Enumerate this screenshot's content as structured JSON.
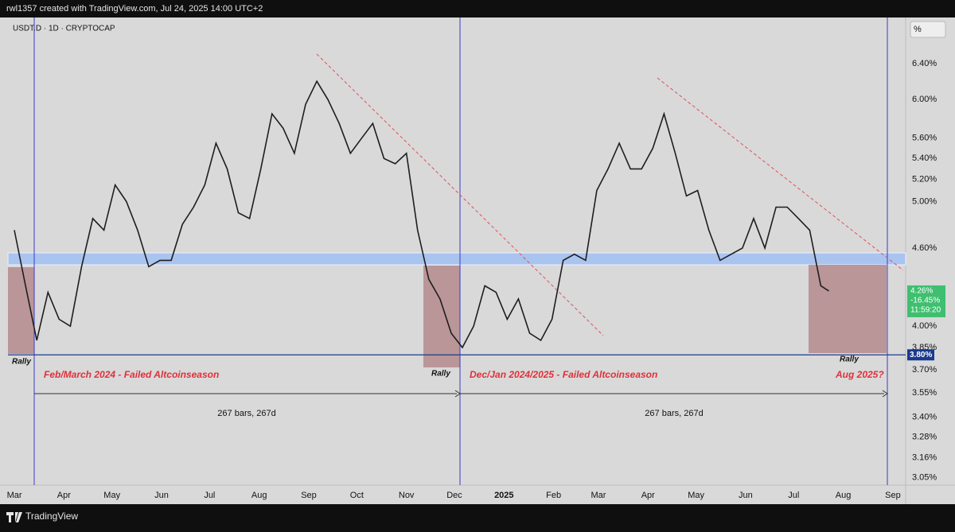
{
  "header": {
    "credit": "rwl1357 created with TradingView.com, Jul 24, 2025 14:00 UTC+2",
    "symbol": "USDT.D · 1D · CRYPTOCAP",
    "scale_button": "%"
  },
  "footer": {
    "brand": "TradingView"
  },
  "chart_data": {
    "type": "line",
    "log_scale": true,
    "grid": false,
    "color": "#1e1e1e",
    "x": [
      "2024-03-01",
      "2024-03-08",
      "2024-03-15",
      "2024-03-22",
      "2024-03-29",
      "2024-04-05",
      "2024-04-12",
      "2024-04-19",
      "2024-04-26",
      "2024-05-03",
      "2024-05-10",
      "2024-05-17",
      "2024-05-24",
      "2024-05-31",
      "2024-06-07",
      "2024-06-14",
      "2024-06-21",
      "2024-06-28",
      "2024-07-05",
      "2024-07-12",
      "2024-07-19",
      "2024-07-26",
      "2024-08-02",
      "2024-08-09",
      "2024-08-16",
      "2024-08-23",
      "2024-08-30",
      "2024-09-06",
      "2024-09-13",
      "2024-09-20",
      "2024-09-27",
      "2024-10-04",
      "2024-10-11",
      "2024-10-18",
      "2024-10-25",
      "2024-11-01",
      "2024-11-08",
      "2024-11-15",
      "2024-11-22",
      "2024-11-29",
      "2024-12-06",
      "2024-12-13",
      "2024-12-20",
      "2024-12-27",
      "2025-01-03",
      "2025-01-10",
      "2025-01-17",
      "2025-01-24",
      "2025-01-31",
      "2025-02-07",
      "2025-02-14",
      "2025-02-21",
      "2025-02-28",
      "2025-03-07",
      "2025-03-14",
      "2025-03-21",
      "2025-03-28",
      "2025-04-04",
      "2025-04-11",
      "2025-04-18",
      "2025-04-25",
      "2025-05-02",
      "2025-05-09",
      "2025-05-16",
      "2025-05-23",
      "2025-05-30",
      "2025-06-06",
      "2025-06-13",
      "2025-06-20",
      "2025-06-27",
      "2025-07-04",
      "2025-07-11",
      "2025-07-18",
      "2025-07-23"
    ],
    "values": [
      4.75,
      4.3,
      3.9,
      4.25,
      4.05,
      4.0,
      4.45,
      4.85,
      4.75,
      5.15,
      5.0,
      4.75,
      4.45,
      4.5,
      4.5,
      4.8,
      4.95,
      5.15,
      5.55,
      5.3,
      4.9,
      4.85,
      5.3,
      5.85,
      5.7,
      5.45,
      5.95,
      6.2,
      6.0,
      5.75,
      5.45,
      5.6,
      5.75,
      5.4,
      5.35,
      5.45,
      4.75,
      4.35,
      4.2,
      3.95,
      3.85,
      4.0,
      4.3,
      4.25,
      4.05,
      4.2,
      3.95,
      3.9,
      4.05,
      4.5,
      4.55,
      4.5,
      5.1,
      5.3,
      5.55,
      5.3,
      5.3,
      5.5,
      5.85,
      5.45,
      5.05,
      5.1,
      4.75,
      4.5,
      4.55,
      4.6,
      4.85,
      4.6,
      4.95,
      4.95,
      4.85,
      4.75,
      4.3,
      4.26
    ],
    "xlim": [
      "2024-02-26",
      "2025-09-09"
    ],
    "xticks": [
      {
        "value": "2024-03-01",
        "label": "Mar"
      },
      {
        "value": "2024-04-01",
        "label": "Apr"
      },
      {
        "value": "2024-05-01",
        "label": "May"
      },
      {
        "value": "2024-06-01",
        "label": "Jun"
      },
      {
        "value": "2024-07-01",
        "label": "Jul"
      },
      {
        "value": "2024-08-01",
        "label": "Aug"
      },
      {
        "value": "2024-09-01",
        "label": "Sep"
      },
      {
        "value": "2024-10-01",
        "label": "Oct"
      },
      {
        "value": "2024-11-01",
        "label": "Nov"
      },
      {
        "value": "2024-12-01",
        "label": "Dec"
      },
      {
        "value": "2025-01-01",
        "label": "2025"
      },
      {
        "value": "2025-02-01",
        "label": "Feb"
      },
      {
        "value": "2025-03-01",
        "label": "Mar"
      },
      {
        "value": "2025-04-01",
        "label": "Apr"
      },
      {
        "value": "2025-05-01",
        "label": "May"
      },
      {
        "value": "2025-06-01",
        "label": "Jun"
      },
      {
        "value": "2025-07-01",
        "label": "Jul"
      },
      {
        "value": "2025-08-01",
        "label": "Aug"
      },
      {
        "value": "2025-09-01",
        "label": "Sep"
      }
    ],
    "ylim": [
      3.01,
      6.95
    ],
    "yticks": [
      {
        "value": 3.05,
        "label": "3.05%"
      },
      {
        "value": 3.16,
        "label": "3.16%"
      },
      {
        "value": 3.28,
        "label": "3.28%"
      },
      {
        "value": 3.4,
        "label": "3.40%"
      },
      {
        "value": 3.55,
        "label": "3.55%"
      },
      {
        "value": 3.7,
        "label": "3.70%"
      },
      {
        "value": 3.85,
        "label": "3.85%"
      },
      {
        "value": 4.0,
        "label": "4.00%"
      },
      {
        "value": 4.6,
        "label": "4.60%"
      },
      {
        "value": 5.0,
        "label": "5.00%"
      },
      {
        "value": 5.2,
        "label": "5.20%"
      },
      {
        "value": 5.4,
        "label": "5.40%"
      },
      {
        "value": 5.6,
        "label": "5.60%"
      },
      {
        "value": 6.0,
        "label": "6.00%"
      },
      {
        "value": 6.4,
        "label": "6.40%"
      }
    ],
    "level": {
      "value": 3.8,
      "label": "3.80%",
      "color": "#1a3a8f"
    },
    "last_price": {
      "value": 4.26,
      "label": "4.26%",
      "change": "-16.45%",
      "countdown": "11:59:20",
      "color": "#3fbf6f"
    },
    "annotations": {
      "rally": [
        "Rally",
        "Rally",
        "Rally"
      ],
      "period_1": "Feb/March 2024 - Failed Altcoinseason",
      "period_2": "Dec/Jan 2024/2025 - Failed Altcoinseason",
      "question": "Aug 2025?",
      "range_1": "267 bars, 267d",
      "range_2": "267 bars, 267d"
    }
  }
}
